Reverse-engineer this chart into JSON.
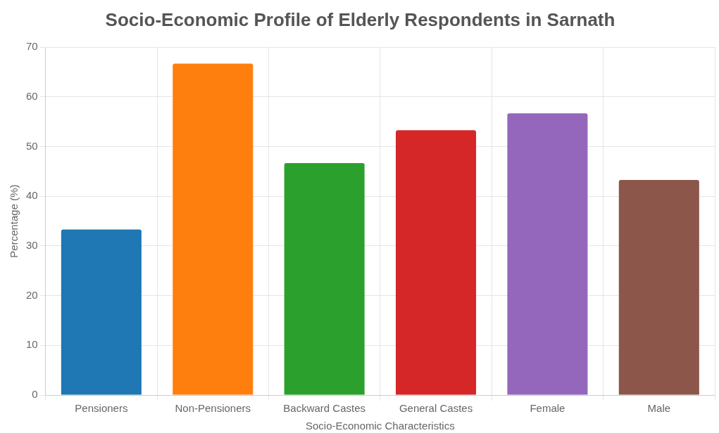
{
  "chart_data": {
    "type": "bar",
    "title": "Socio-Economic Profile of Elderly Respondents in Sarnath",
    "xlabel": "Socio-Economic Characteristics",
    "ylabel": "Percentage (%)",
    "categories": [
      "Pensioners",
      "Non-Pensioners",
      "Backward Castes",
      "General Castes",
      "Female",
      "Male"
    ],
    "values": [
      33.3,
      66.7,
      46.7,
      53.3,
      56.7,
      43.3
    ],
    "colors": [
      "#1f77b4",
      "#ff7f0e",
      "#2ca02c",
      "#d62728",
      "#9467bd",
      "#8c564b"
    ],
    "ylim": [
      0,
      70
    ],
    "yticks": [
      0,
      10,
      20,
      30,
      40,
      50,
      60,
      70
    ],
    "grid": true,
    "legend": false
  }
}
